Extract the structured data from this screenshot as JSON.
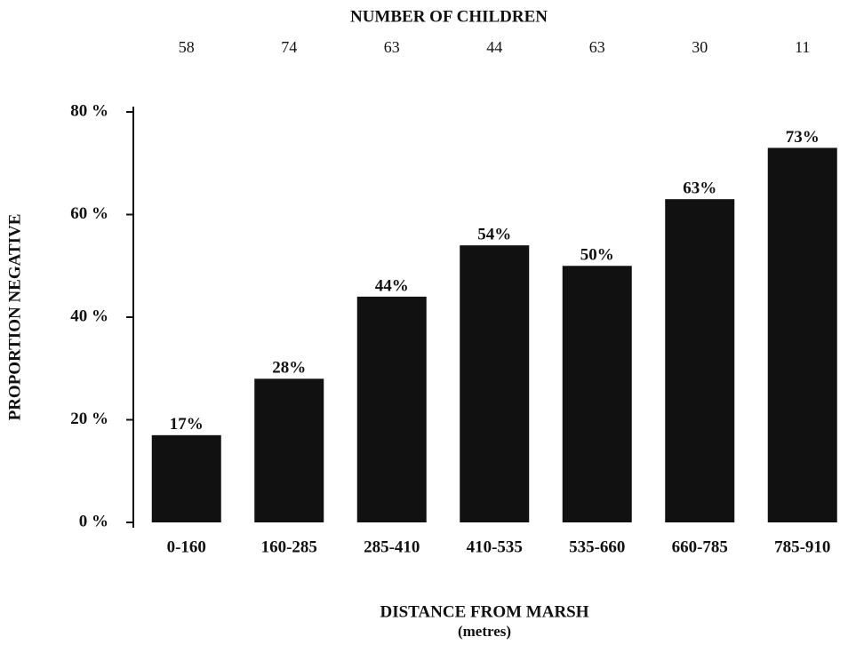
{
  "chart_data": {
    "type": "bar",
    "top_axis_label": "NUMBER OF CHILDREN",
    "counts": [
      58,
      74,
      63,
      44,
      63,
      30,
      11
    ],
    "categories": [
      "0-160",
      "160-285",
      "285-410",
      "410-535",
      "535-660",
      "660-785",
      "785-910"
    ],
    "values": [
      17,
      28,
      44,
      54,
      50,
      63,
      73
    ],
    "value_labels": [
      "17%",
      "28%",
      "44%",
      "54%",
      "50%",
      "63%",
      "73%"
    ],
    "color": "#111111",
    "ylim": [
      0,
      80
    ],
    "yticks": [
      {
        "value": 0,
        "label": "0 %"
      },
      {
        "value": 20,
        "label": "20 %"
      },
      {
        "value": 40,
        "label": "40 %"
      },
      {
        "value": 60,
        "label": "60 %"
      },
      {
        "value": 80,
        "label": "80 %"
      }
    ],
    "ylabel": "PROPORTION NEGATIVE",
    "xlabel": "DISTANCE FROM MARSH",
    "xlabel_unit": "(metres)"
  }
}
